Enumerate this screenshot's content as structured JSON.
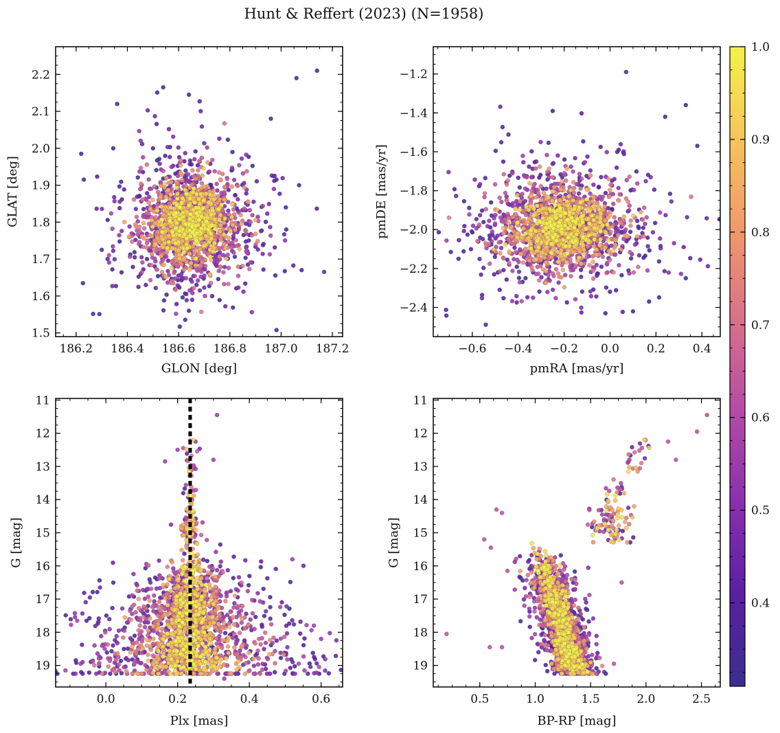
{
  "figure": {
    "title": "Hunt & Reffert (2023) (N=1958)"
  },
  "colorbar": {
    "min": 0.31,
    "max": 1.0,
    "ticks": [
      0.4,
      0.5,
      0.6,
      0.7,
      0.8,
      0.9,
      1.0
    ],
    "tick_labels": [
      "0.4",
      "0.5",
      "0.6",
      "0.7",
      "0.8",
      "0.9",
      "1.0"
    ],
    "colors": [
      "#3a2f8f",
      "#5a1fa3",
      "#8a2fb0",
      "#b54aa6",
      "#d9708a",
      "#f0996a",
      "#f8c45a",
      "#f4f24a"
    ]
  },
  "chart_data": [
    {
      "id": "sky",
      "type": "scatter",
      "xlabel": "GLON [deg]",
      "ylabel": "GLAT [deg]",
      "xlim": [
        186.12,
        187.24
      ],
      "ylim": [
        1.49,
        2.275
      ],
      "xticks": [
        186.2,
        186.4,
        186.6,
        186.8,
        187.0,
        187.2
      ],
      "xtick_labels": [
        "186.2",
        "186.4",
        "186.6",
        "186.8",
        "187.0",
        "187.2"
      ],
      "yticks": [
        1.5,
        1.6,
        1.7,
        1.8,
        1.9,
        2.0,
        2.1,
        2.2
      ],
      "ytick_labels": [
        "1.5",
        "1.6",
        "1.7",
        "1.8",
        "1.9",
        "2.0",
        "2.1",
        "2.2"
      ],
      "cluster": {
        "cx": 186.65,
        "cy": 1.795,
        "sx": 0.105,
        "sy": 0.075
      },
      "outliers": [
        [
          187.14,
          2.21
        ],
        [
          187.06,
          2.19
        ],
        [
          186.36,
          2.12
        ],
        [
          186.54,
          2.165
        ],
        [
          186.22,
          1.985
        ],
        [
          186.23,
          1.915
        ],
        [
          187.07,
          1.9
        ],
        [
          186.96,
          2.08
        ],
        [
          186.64,
          2.145
        ],
        [
          186.3,
          1.725
        ],
        [
          186.64,
          1.56
        ],
        [
          187.02,
          1.78
        ]
      ]
    },
    {
      "id": "pm",
      "type": "scatter",
      "xlabel": "pmRA [mas/yr]",
      "ylabel": "pmDE [mas/yr]",
      "xlim": [
        -0.77,
        0.48
      ],
      "ylim": [
        -2.55,
        -1.06
      ],
      "xticks": [
        -0.6,
        -0.4,
        -0.2,
        0.0,
        0.2,
        0.4
      ],
      "xtick_labels": [
        "−0.6",
        "−0.4",
        "−0.2",
        "0.0",
        "0.2",
        "0.4"
      ],
      "yticks": [
        -2.4,
        -2.2,
        -2.0,
        -1.8,
        -1.6,
        -1.4,
        -1.2
      ],
      "ytick_labels": [
        "−2.4",
        "−2.2",
        "−2.0",
        "−1.8",
        "−1.6",
        "−1.4",
        "−1.2"
      ],
      "cluster": {
        "cx": -0.21,
        "cy": -1.985,
        "sx": 0.155,
        "sy": 0.125
      },
      "outliers": [
        [
          0.07,
          -1.19
        ],
        [
          -0.25,
          -1.39
        ],
        [
          0.38,
          -1.57
        ],
        [
          0.33,
          -1.36
        ],
        [
          -0.66,
          -2.15
        ],
        [
          0.1,
          -2.42
        ],
        [
          0.33,
          -2.25
        ],
        [
          0.24,
          -1.42
        ],
        [
          -0.02,
          -2.43
        ],
        [
          0.17,
          -2.37
        ]
      ]
    },
    {
      "id": "plx",
      "type": "scatter",
      "xlabel": "Plx [mas]",
      "ylabel": "G [mag]",
      "xlim": [
        -0.14,
        0.66
      ],
      "ylim": [
        19.65,
        10.95
      ],
      "xticks": [
        0.0,
        0.2,
        0.4,
        0.6
      ],
      "xtick_labels": [
        "0.0",
        "0.2",
        "0.4",
        "0.6"
      ],
      "yticks": [
        11,
        12,
        13,
        14,
        15,
        16,
        17,
        18,
        19
      ],
      "ytick_labels": [
        "11",
        "12",
        "13",
        "14",
        "15",
        "16",
        "17",
        "18",
        "19"
      ],
      "vline": 0.235,
      "outliers": [
        [
          0.31,
          11.45
        ],
        [
          0.3,
          12.8
        ],
        [
          0.165,
          12.85
        ],
        [
          0.25,
          12.25
        ],
        [
          0.52,
          15.8
        ],
        [
          0.2,
          12.5
        ],
        [
          -0.07,
          18.95
        ],
        [
          0.6,
          18.2
        ],
        [
          0.33,
          19.4
        ],
        [
          0.58,
          17.8
        ]
      ]
    },
    {
      "id": "cmd",
      "type": "scatter",
      "xlabel": "BP-RP [mag]",
      "ylabel": "G [mag]",
      "xlim": [
        0.08,
        2.67
      ],
      "ylim": [
        19.65,
        10.95
      ],
      "xticks": [
        0.5,
        1.0,
        1.5,
        2.0,
        2.5
      ],
      "xtick_labels": [
        "0.5",
        "1.0",
        "1.5",
        "2.0",
        "2.5"
      ],
      "yticks": [
        11,
        12,
        13,
        14,
        15,
        16,
        17,
        18,
        19
      ],
      "ytick_labels": [
        "11",
        "12",
        "13",
        "14",
        "15",
        "16",
        "17",
        "18",
        "19"
      ],
      "outliers": [
        [
          2.55,
          11.45
        ],
        [
          2.46,
          11.95
        ],
        [
          2.2,
          12.25
        ],
        [
          2.27,
          12.8
        ],
        [
          1.99,
          12.2
        ],
        [
          0.2,
          18.05
        ],
        [
          0.7,
          18.45
        ],
        [
          0.59,
          18.45
        ],
        [
          0.6,
          15.45
        ],
        [
          0.54,
          15.2
        ],
        [
          0.65,
          14.3
        ],
        [
          0.7,
          14.4
        ],
        [
          1.78,
          16.5
        ],
        [
          1.71,
          18.95
        ],
        [
          0.75,
          16.15
        ]
      ]
    }
  ]
}
